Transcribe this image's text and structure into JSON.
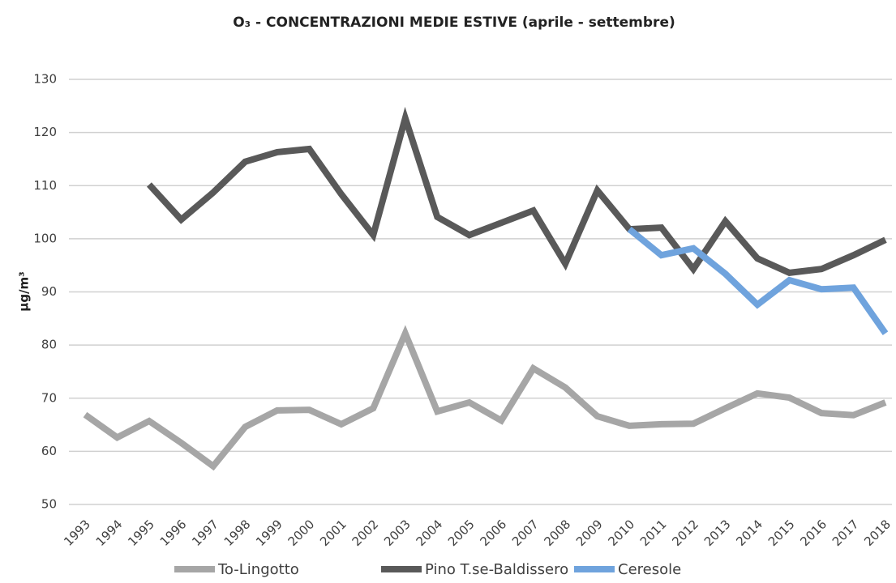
{
  "chart_data": {
    "type": "line",
    "title": "O₃ - CONCENTRAZIONI MEDIE ESTIVE (aprile - settembre)",
    "y_label": "µg/m³",
    "categories": [
      "1993",
      "1994",
      "1995",
      "1996",
      "1997",
      "1998",
      "1999",
      "2000",
      "2001",
      "2002",
      "2003",
      "2004",
      "2005",
      "2006",
      "2007",
      "2008",
      "2009",
      "2010",
      "2011",
      "2012",
      "2013",
      "2014",
      "2015",
      "2016",
      "2017",
      "2018"
    ],
    "series": [
      {
        "name": "To-Lingotto",
        "color": "#a6a6a6",
        "values": [
          66.9,
          62.6,
          65.7,
          61.6,
          57.2,
          64.6,
          67.7,
          67.8,
          65.1,
          68.1,
          82.2,
          67.5,
          69.2,
          65.8,
          75.6,
          72.0,
          66.6,
          64.8,
          65.1,
          65.2,
          68.1,
          70.9,
          70.1,
          67.2,
          66.8,
          69.2
        ]
      },
      {
        "name": "Pino T.se-Baldissero",
        "color": "#595959",
        "values": [
          null,
          null,
          110.2,
          103.6,
          108.7,
          114.5,
          116.3,
          116.9,
          108.4,
          100.7,
          122.7,
          104.1,
          100.7,
          103.0,
          105.3,
          95.3,
          109.1,
          101.8,
          102.1,
          94.3,
          103.3,
          96.3,
          93.6,
          94.3,
          96.9,
          99.8
        ]
      },
      {
        "name": "Ceresole",
        "color": "#6fa3dd",
        "values": [
          null,
          null,
          null,
          null,
          null,
          null,
          null,
          null,
          null,
          null,
          null,
          null,
          null,
          null,
          null,
          null,
          null,
          101.8,
          96.9,
          98.2,
          93.4,
          87.6,
          92.2,
          90.5,
          90.8,
          82.2
        ]
      }
    ],
    "ylim": [
      50,
      130
    ],
    "yticks": [
      50,
      60,
      70,
      80,
      90,
      100,
      110,
      120,
      130
    ],
    "grid": true,
    "legend": "bottom"
  }
}
